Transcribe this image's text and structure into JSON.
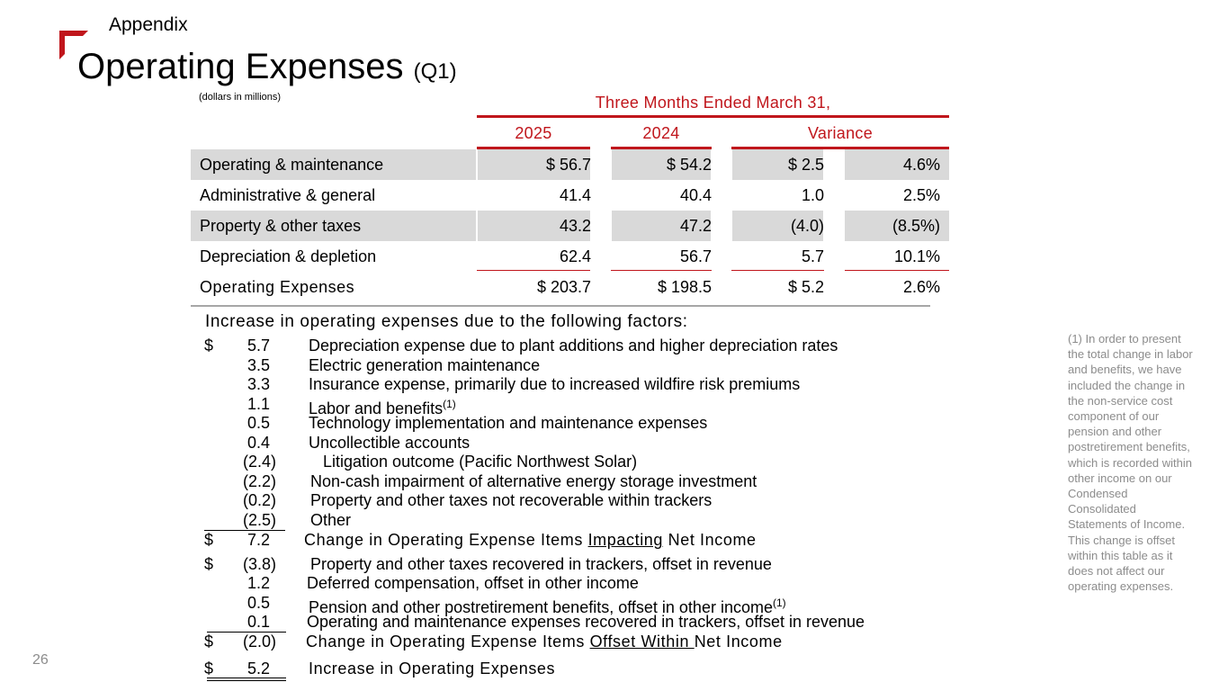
{
  "header": {
    "section": "Appendix",
    "title": "Operating Expenses",
    "title_suffix": "(Q1)",
    "brand_color": "#c0161c"
  },
  "table": {
    "units": "(dollars in millions)",
    "period_header": "Three Months Ended March 31,",
    "columns": [
      "2025",
      "2024",
      "Variance"
    ],
    "rows": [
      {
        "label": "Operating & maintenance",
        "c2025": "$ 56.7",
        "c2024": "$ 54.2",
        "var": "$ 2.5",
        "pct": "4.6%"
      },
      {
        "label": "Administrative & general",
        "c2025": "41.4",
        "c2024": "40.4",
        "var": "1.0",
        "pct": "2.5%"
      },
      {
        "label": "Property & other taxes",
        "c2025": "43.2",
        "c2024": "47.2",
        "var": "(4.0)",
        "pct": "(8.5%)"
      },
      {
        "label": "Depreciation & depletion",
        "c2025": "62.4",
        "c2024": "56.7",
        "var": "5.7",
        "pct": "10.1%"
      },
      {
        "label": "Operating Expenses",
        "c2025": "$ 203.7",
        "c2024": "$ 198.5",
        "var": "$ 5.2",
        "pct": "2.6%"
      }
    ]
  },
  "factors": {
    "heading": "Increase in operating expenses due to the following factors:",
    "dollar": "$",
    "group1": [
      {
        "amount": "5.7",
        "text": "Depreciation expense due to plant additions and higher depreciation rates"
      },
      {
        "amount": "3.5",
        "text": "Electric generation maintenance"
      },
      {
        "amount": "3.3",
        "text": "Insurance expense, primarily due to increased wildfire risk premiums"
      },
      {
        "amount": "1.1",
        "text": "Labor and benefits",
        "sup": "(1)"
      },
      {
        "amount": "0.5",
        "text": "Technology implementation and maintenance expenses"
      },
      {
        "amount": "0.4",
        "text": "Uncollectible accounts"
      },
      {
        "amount": "(2.4)",
        "text": "Litigation outcome (Pacific Northwest Solar)"
      },
      {
        "amount": "(2.2)",
        "text": "Non-cash impairment of alternative energy storage investment"
      },
      {
        "amount": "(0.2)",
        "text": "Property and other taxes not recoverable within trackers"
      },
      {
        "amount": "(2.5)",
        "text": "Other"
      }
    ],
    "subtotal1": {
      "amount": "7.2",
      "pre": "Change in Operating Expense Items ",
      "underlined": "Impacting",
      "post": " Net Income"
    },
    "group2": [
      {
        "amount": "(3.8)",
        "text": "Property and other taxes recovered in trackers, offset in revenue"
      },
      {
        "amount": "1.2",
        "text": "Deferred compensation, offset in other income"
      },
      {
        "amount": "0.5",
        "text": "Pension and other postretirement benefits, offset in other income",
        "sup": "(1)"
      },
      {
        "amount": "0.1",
        "text": "Operating and maintenance expenses recovered in trackers, offset in revenue"
      }
    ],
    "subtotal2": {
      "amount": "(2.0)",
      "pre": "Change in Operating Expense Items ",
      "underlined": "Offset Within ",
      "post": "Net Income"
    },
    "total": {
      "amount": "5.2",
      "text": "Increase in Operating Expenses"
    }
  },
  "footnote": "(1) In order to present the total change in labor and benefits, we have included the change in the non-service cost component of our pension and other postretirement benefits, which is recorded within other income on our Condensed Consolidated Statements of Income. This change is offset within this table as it does not affect our operating expenses.",
  "page_number": "26"
}
